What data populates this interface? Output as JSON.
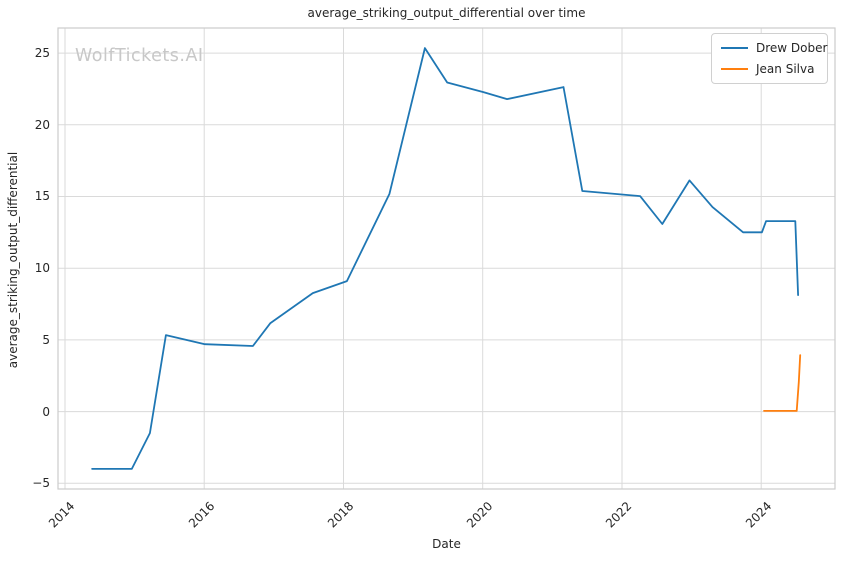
{
  "chart_data": {
    "type": "line",
    "title": "average_striking_output_differential over time",
    "xlabel": "Date",
    "ylabel": "average_striking_output_differential",
    "watermark": "WolfTickets.AI",
    "xlim": [
      2013.9,
      2025.06
    ],
    "ylim": [
      -5.4,
      26.75
    ],
    "grid": true,
    "legend_position": "upper right",
    "background_color": "#ffffff",
    "grid_color": "#dadada",
    "spine_color": "#cccccc",
    "text_color": "#262626",
    "watermark_color": "#c8c8c8",
    "x_ticks": [
      {
        "value": 2014,
        "label": "2014"
      },
      {
        "value": 2016,
        "label": "2016"
      },
      {
        "value": 2018,
        "label": "2018"
      },
      {
        "value": 2020,
        "label": "2020"
      },
      {
        "value": 2022,
        "label": "2022"
      },
      {
        "value": 2024,
        "label": "2024"
      }
    ],
    "y_ticks": [
      {
        "value": -5,
        "label": "−5"
      },
      {
        "value": 0,
        "label": "0"
      },
      {
        "value": 5,
        "label": "5"
      },
      {
        "value": 10,
        "label": "10"
      },
      {
        "value": 15,
        "label": "15"
      },
      {
        "value": 20,
        "label": "20"
      },
      {
        "value": 25,
        "label": "25"
      }
    ],
    "series": [
      {
        "name": "Drew Dober",
        "color": "#1f77b4",
        "points": [
          [
            2014.39,
            -4.0
          ],
          [
            2014.96,
            -4.0
          ],
          [
            2015.22,
            -1.5
          ],
          [
            2015.45,
            5.33
          ],
          [
            2016.01,
            4.7
          ],
          [
            2016.7,
            4.57
          ],
          [
            2016.95,
            6.17
          ],
          [
            2017.56,
            8.26
          ],
          [
            2018.05,
            9.1
          ],
          [
            2018.66,
            15.17
          ],
          [
            2019.17,
            25.35
          ],
          [
            2019.49,
            22.95
          ],
          [
            2020.01,
            22.28
          ],
          [
            2020.35,
            21.79
          ],
          [
            2021.16,
            22.63
          ],
          [
            2021.43,
            15.38
          ],
          [
            2022.26,
            15.03
          ],
          [
            2022.58,
            13.08
          ],
          [
            2022.97,
            16.12
          ],
          [
            2023.3,
            14.26
          ],
          [
            2023.74,
            12.5
          ],
          [
            2024.01,
            12.5
          ],
          [
            2024.07,
            13.28
          ],
          [
            2024.49,
            13.28
          ],
          [
            2024.53,
            8.12
          ]
        ]
      },
      {
        "name": "Jean Silva",
        "color": "#ff7f0e",
        "points": [
          [
            2024.04,
            0.05
          ],
          [
            2024.51,
            0.05
          ],
          [
            2024.54,
            2.06
          ],
          [
            2024.56,
            3.94
          ]
        ]
      }
    ]
  }
}
